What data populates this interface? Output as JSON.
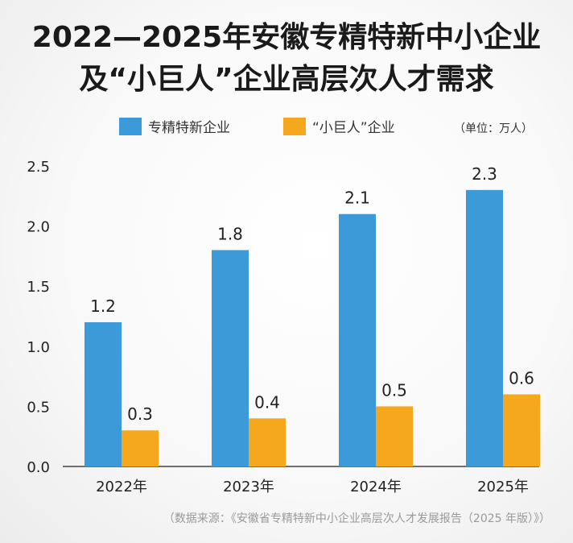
{
  "chart_data": {
    "type": "bar",
    "title_line1": "2022—2025年安徽专精特新中小企业",
    "title_line2": "及“小巨人”企业高层次人才需求",
    "unit": "（单位：万人）",
    "categories": [
      "2022年",
      "2023年",
      "2024年",
      "2025年"
    ],
    "series": [
      {
        "name": "专精特新企业",
        "color": "#3c9ad9",
        "values": [
          1.2,
          1.8,
          2.1,
          2.3
        ]
      },
      {
        "name": "“小巨人”企业",
        "color": "#f5a81e",
        "values": [
          0.3,
          0.4,
          0.5,
          0.6
        ]
      }
    ],
    "ylim": [
      0,
      2.5
    ],
    "yticks": [
      "0.0",
      "0.5",
      "1.0",
      "1.5",
      "2.0",
      "2.5"
    ],
    "grid": false,
    "legend_position": "top",
    "source": "（数据来源：《安徽省专精特新中小企业高层次人才发展报告（2025 年版）》）"
  }
}
